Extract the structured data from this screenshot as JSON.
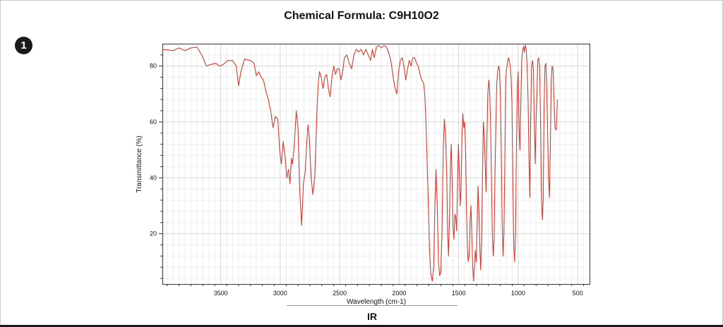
{
  "chart_data": {
    "type": "line",
    "title": "Chemical Formula: C9H10O2",
    "xlabel": "Wavelength (cm-1)",
    "ylabel": "Transmittance (%)",
    "xlim": [
      3990,
      400
    ],
    "ylim": [
      2,
      88
    ],
    "x_ticks": [
      3500,
      3000,
      2500,
      2000,
      1500,
      1000,
      500
    ],
    "x_tick_labels": [
      "3500",
      "3000",
      "2500",
      "2000",
      "1500",
      "1000",
      "500"
    ],
    "y_ticks": [
      20,
      40,
      60,
      80
    ],
    "y_tick_labels": [
      "20",
      "40",
      "60",
      "80"
    ],
    "grid": true,
    "line_color": "#d63a2f",
    "series": [
      {
        "points": [
          [
            3990,
            86
          ],
          [
            3900,
            85.5
          ],
          [
            3850,
            86.5
          ],
          [
            3800,
            85.5
          ],
          [
            3750,
            86.5
          ],
          [
            3700,
            86.8
          ],
          [
            3660,
            84
          ],
          [
            3620,
            80
          ],
          [
            3590,
            80.5
          ],
          [
            3540,
            81
          ],
          [
            3510,
            80
          ],
          [
            3480,
            80.5
          ],
          [
            3440,
            82
          ],
          [
            3400,
            82
          ],
          [
            3370,
            80
          ],
          [
            3350,
            73
          ],
          [
            3330,
            78
          ],
          [
            3300,
            82.5
          ],
          [
            3250,
            82
          ],
          [
            3220,
            81
          ],
          [
            3200,
            76.5
          ],
          [
            3180,
            78
          ],
          [
            3160,
            76
          ],
          [
            3140,
            75
          ],
          [
            3120,
            71
          ],
          [
            3100,
            68
          ],
          [
            3080,
            64
          ],
          [
            3060,
            58
          ],
          [
            3040,
            62
          ],
          [
            3020,
            61
          ],
          [
            3005,
            50
          ],
          [
            2990,
            45
          ],
          [
            2975,
            53
          ],
          [
            2960,
            48
          ],
          [
            2945,
            40
          ],
          [
            2930,
            43
          ],
          [
            2918,
            38
          ],
          [
            2905,
            47
          ],
          [
            2895,
            45
          ],
          [
            2880,
            53
          ],
          [
            2865,
            64
          ],
          [
            2850,
            58
          ],
          [
            2835,
            35
          ],
          [
            2820,
            23
          ],
          [
            2805,
            38
          ],
          [
            2790,
            42
          ],
          [
            2775,
            54
          ],
          [
            2765,
            59
          ],
          [
            2755,
            54
          ],
          [
            2740,
            40
          ],
          [
            2725,
            34
          ],
          [
            2710,
            40
          ],
          [
            2700,
            52
          ],
          [
            2690,
            65
          ],
          [
            2680,
            74
          ],
          [
            2670,
            78
          ],
          [
            2655,
            76
          ],
          [
            2640,
            72
          ],
          [
            2625,
            76
          ],
          [
            2610,
            77
          ],
          [
            2595,
            72
          ],
          [
            2580,
            69
          ],
          [
            2565,
            76
          ],
          [
            2550,
            80
          ],
          [
            2535,
            77
          ],
          [
            2520,
            79
          ],
          [
            2505,
            79
          ],
          [
            2490,
            75
          ],
          [
            2475,
            78
          ],
          [
            2460,
            83
          ],
          [
            2440,
            84
          ],
          [
            2420,
            81
          ],
          [
            2400,
            79
          ],
          [
            2380,
            84
          ],
          [
            2360,
            86
          ],
          [
            2340,
            85
          ],
          [
            2320,
            86
          ],
          [
            2300,
            84
          ],
          [
            2280,
            86
          ],
          [
            2260,
            84
          ],
          [
            2240,
            82
          ],
          [
            2225,
            86
          ],
          [
            2210,
            83
          ],
          [
            2190,
            87
          ],
          [
            2170,
            87.3
          ],
          [
            2150,
            86.5
          ],
          [
            2130,
            87.3
          ],
          [
            2110,
            87
          ],
          [
            2090,
            85
          ],
          [
            2070,
            82
          ],
          [
            2050,
            76
          ],
          [
            2035,
            72
          ],
          [
            2020,
            70
          ],
          [
            2005,
            78
          ],
          [
            1990,
            82
          ],
          [
            1975,
            83
          ],
          [
            1960,
            80
          ],
          [
            1945,
            75
          ],
          [
            1930,
            79
          ],
          [
            1915,
            82
          ],
          [
            1900,
            80
          ],
          [
            1885,
            83
          ],
          [
            1870,
            83
          ],
          [
            1855,
            81
          ],
          [
            1840,
            80
          ],
          [
            1825,
            77
          ],
          [
            1810,
            75
          ],
          [
            1795,
            74
          ],
          [
            1785,
            70
          ],
          [
            1775,
            60
          ],
          [
            1765,
            45
          ],
          [
            1755,
            30
          ],
          [
            1745,
            15
          ],
          [
            1735,
            6
          ],
          [
            1722,
            3
          ],
          [
            1710,
            8
          ],
          [
            1700,
            30
          ],
          [
            1690,
            43
          ],
          [
            1680,
            30
          ],
          [
            1670,
            10
          ],
          [
            1660,
            5
          ],
          [
            1650,
            6
          ],
          [
            1640,
            20
          ],
          [
            1630,
            50
          ],
          [
            1620,
            61
          ],
          [
            1610,
            55
          ],
          [
            1600,
            40
          ],
          [
            1592,
            20
          ],
          [
            1585,
            12
          ],
          [
            1577,
            25
          ],
          [
            1569,
            45
          ],
          [
            1562,
            52
          ],
          [
            1555,
            38
          ],
          [
            1547,
            22
          ],
          [
            1540,
            18
          ],
          [
            1532,
            27
          ],
          [
            1525,
            26
          ],
          [
            1517,
            21
          ],
          [
            1509,
            40
          ],
          [
            1502,
            52
          ],
          [
            1494,
            42
          ],
          [
            1487,
            30
          ],
          [
            1480,
            36
          ],
          [
            1472,
            55
          ],
          [
            1465,
            63
          ],
          [
            1457,
            58
          ],
          [
            1450,
            60
          ],
          [
            1442,
            50
          ],
          [
            1435,
            30
          ],
          [
            1427,
            15
          ],
          [
            1420,
            10
          ],
          [
            1412,
            12
          ],
          [
            1404,
            25
          ],
          [
            1397,
            30
          ],
          [
            1390,
            20
          ],
          [
            1382,
            8
          ],
          [
            1375,
            3
          ],
          [
            1368,
            8
          ],
          [
            1360,
            14
          ],
          [
            1352,
            10
          ],
          [
            1345,
            22
          ],
          [
            1337,
            37
          ],
          [
            1330,
            28
          ],
          [
            1322,
            15
          ],
          [
            1315,
            7
          ],
          [
            1307,
            18
          ],
          [
            1300,
            40
          ],
          [
            1292,
            60
          ],
          [
            1285,
            55
          ],
          [
            1277,
            45
          ],
          [
            1270,
            35
          ],
          [
            1262,
            55
          ],
          [
            1255,
            70
          ],
          [
            1247,
            75
          ],
          [
            1240,
            72
          ],
          [
            1232,
            60
          ],
          [
            1225,
            40
          ],
          [
            1217,
            20
          ],
          [
            1210,
            12
          ],
          [
            1202,
            18
          ],
          [
            1195,
            40
          ],
          [
            1187,
            60
          ],
          [
            1180,
            74
          ],
          [
            1172,
            78
          ],
          [
            1165,
            80
          ],
          [
            1157,
            79
          ],
          [
            1150,
            70
          ],
          [
            1142,
            50
          ],
          [
            1135,
            25
          ],
          [
            1127,
            12
          ],
          [
            1120,
            20
          ],
          [
            1112,
            45
          ],
          [
            1105,
            75
          ],
          [
            1097,
            79
          ],
          [
            1090,
            81
          ],
          [
            1082,
            83
          ],
          [
            1075,
            82
          ],
          [
            1067,
            80
          ],
          [
            1060,
            76
          ],
          [
            1052,
            67
          ],
          [
            1045,
            40
          ],
          [
            1037,
            15
          ],
          [
            1030,
            10
          ],
          [
            1022,
            20
          ],
          [
            1015,
            50
          ],
          [
            1007,
            72
          ],
          [
            1000,
            78
          ],
          [
            992,
            58
          ],
          [
            985,
            50
          ],
          [
            977,
            68
          ],
          [
            970,
            82
          ],
          [
            962,
            86
          ],
          [
            955,
            87
          ],
          [
            947,
            85
          ],
          [
            940,
            87.5
          ],
          [
            932,
            86
          ],
          [
            925,
            80
          ],
          [
            917,
            68
          ],
          [
            910,
            48
          ],
          [
            902,
            33
          ],
          [
            895,
            60
          ],
          [
            887,
            80
          ],
          [
            880,
            82
          ],
          [
            872,
            79
          ],
          [
            865,
            62
          ],
          [
            857,
            45
          ],
          [
            850,
            60
          ],
          [
            842,
            70
          ],
          [
            835,
            82
          ],
          [
            827,
            83
          ],
          [
            820,
            80
          ],
          [
            812,
            60
          ],
          [
            805,
            35
          ],
          [
            797,
            25
          ],
          [
            790,
            32
          ],
          [
            782,
            65
          ],
          [
            775,
            80
          ],
          [
            767,
            81
          ],
          [
            760,
            72
          ],
          [
            752,
            55
          ],
          [
            745,
            40
          ],
          [
            737,
            33
          ],
          [
            730,
            50
          ],
          [
            722,
            75
          ],
          [
            715,
            80
          ],
          [
            707,
            79
          ],
          [
            700,
            70
          ],
          [
            690,
            58
          ],
          [
            680,
            57
          ],
          [
            670,
            68
          ]
        ]
      }
    ]
  },
  "tab": {
    "label": "IR"
  },
  "badge": {
    "number": "1"
  }
}
